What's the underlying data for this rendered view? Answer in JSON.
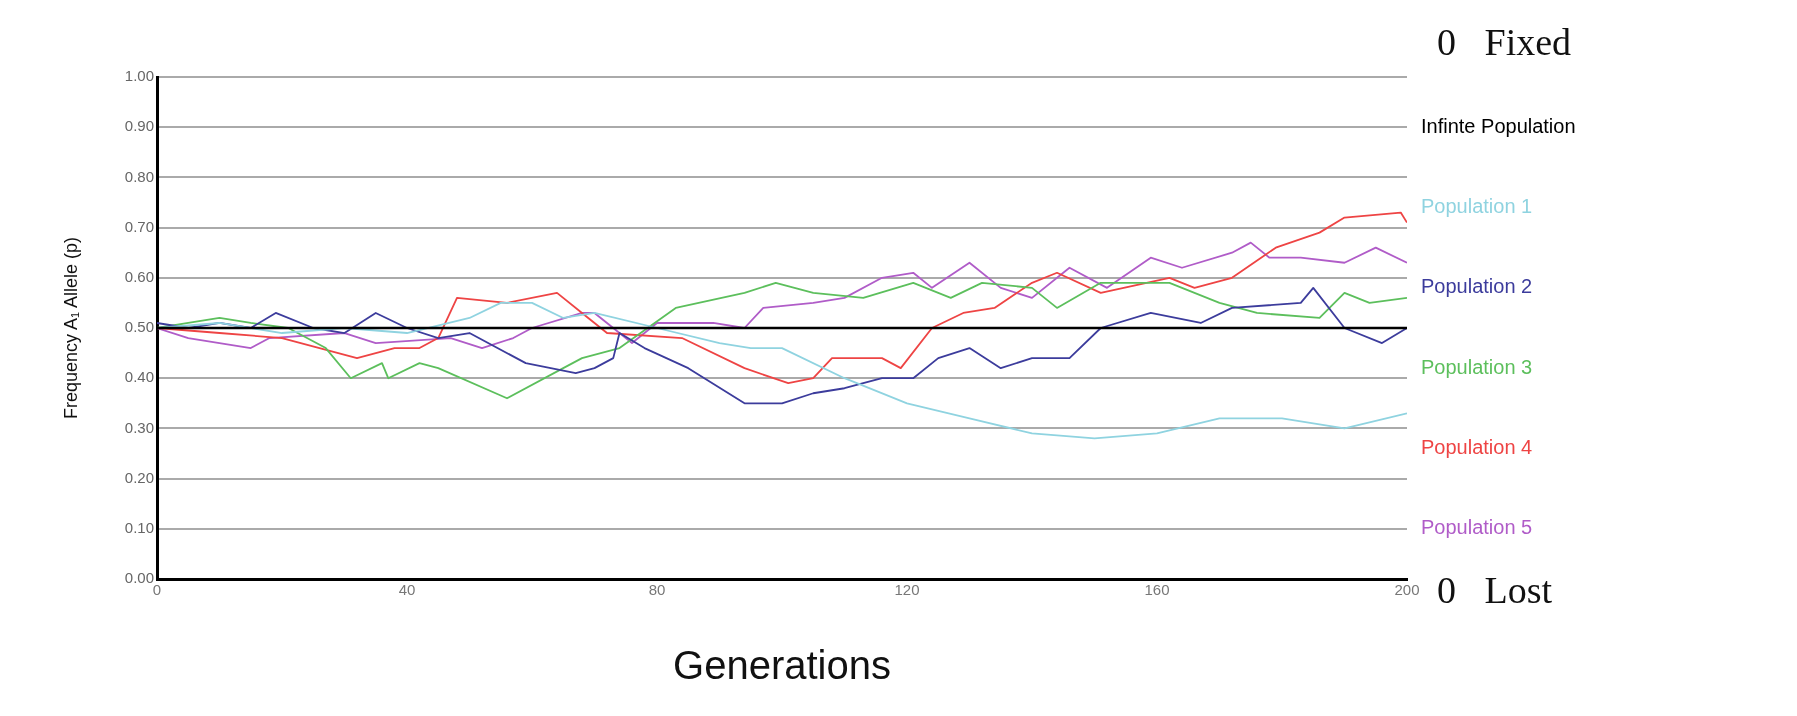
{
  "chart_data": {
    "type": "line",
    "xlabel": "Generations",
    "ylabel": "Frequency A₁ Allele (p)",
    "xlim": [
      0,
      200
    ],
    "xticks": [
      0,
      40,
      80,
      120,
      160,
      200
    ],
    "ylim": [
      0,
      1
    ],
    "yticks": [
      {
        "value": 0,
        "label": "0.00"
      },
      {
        "value": 0.1,
        "label": "0.10"
      },
      {
        "value": 0.2,
        "label": "0.20"
      },
      {
        "value": 0.3,
        "label": "0.30"
      },
      {
        "value": 0.4,
        "label": "0.40"
      },
      {
        "value": 0.5,
        "label": "0.50"
      },
      {
        "value": 0.6,
        "label": "0.60"
      },
      {
        "value": 0.7,
        "label": "0.70"
      },
      {
        "value": 0.8,
        "label": "0.80"
      },
      {
        "value": 0.9,
        "label": "0.90"
      },
      {
        "value": 1,
        "label": "1.00"
      }
    ],
    "grid": "y",
    "legend": "right",
    "marker": "none",
    "line_style": "solid",
    "annotations": [
      "0   Fixed",
      "0   Lost"
    ],
    "series": [
      {
        "name": "Infinte Population",
        "color": "#000000",
        "x": [
          0,
          200
        ],
        "values": [
          0.5,
          0.5
        ]
      },
      {
        "name": "Population 1",
        "color": "#8fd3e0",
        "x": [
          0,
          10,
          20,
          30,
          40,
          50,
          55,
          60,
          65,
          70,
          80,
          90,
          95,
          100,
          110,
          120,
          130,
          140,
          150,
          160,
          170,
          180,
          190,
          200
        ],
        "values": [
          0.5,
          0.51,
          0.49,
          0.5,
          0.49,
          0.52,
          0.55,
          0.55,
          0.52,
          0.53,
          0.5,
          0.47,
          0.46,
          0.46,
          0.4,
          0.35,
          0.32,
          0.29,
          0.28,
          0.29,
          0.32,
          0.32,
          0.3,
          0.33
        ]
      },
      {
        "name": "Population 2",
        "color": "#3c3c9c",
        "x": [
          0,
          5,
          10,
          15,
          19,
          25,
          30,
          35,
          40,
          45,
          50,
          59,
          67,
          70,
          73,
          74,
          78,
          85,
          94,
          100,
          105,
          110,
          116,
          121,
          125,
          130,
          135,
          140,
          146,
          151,
          159,
          167,
          172,
          183,
          185,
          190,
          196,
          200
        ],
        "values": [
          0.51,
          0.5,
          0.51,
          0.5,
          0.53,
          0.5,
          0.49,
          0.53,
          0.5,
          0.48,
          0.49,
          0.43,
          0.41,
          0.42,
          0.44,
          0.49,
          0.46,
          0.42,
          0.35,
          0.35,
          0.37,
          0.38,
          0.4,
          0.4,
          0.44,
          0.46,
          0.42,
          0.44,
          0.44,
          0.5,
          0.53,
          0.51,
          0.54,
          0.55,
          0.58,
          0.5,
          0.47,
          0.5
        ]
      },
      {
        "name": "Population 3",
        "color": "#5cbf5c",
        "x": [
          0,
          5,
          10,
          15,
          21,
          27,
          31,
          36,
          37,
          42,
          45,
          56,
          65,
          68,
          74,
          83,
          94,
          99,
          105,
          113,
          121,
          127,
          132,
          140,
          144,
          151,
          162,
          170,
          176,
          186,
          190,
          194,
          200
        ],
        "values": [
          0.5,
          0.51,
          0.52,
          0.51,
          0.5,
          0.46,
          0.4,
          0.43,
          0.4,
          0.43,
          0.42,
          0.36,
          0.42,
          0.44,
          0.46,
          0.54,
          0.57,
          0.59,
          0.57,
          0.56,
          0.59,
          0.56,
          0.59,
          0.58,
          0.54,
          0.59,
          0.59,
          0.55,
          0.53,
          0.52,
          0.57,
          0.55,
          0.56
        ]
      },
      {
        "name": "Population 4",
        "color": "#ee4444",
        "x": [
          0,
          10,
          20,
          26,
          32,
          38,
          42,
          45,
          48,
          56,
          64,
          68,
          72,
          84,
          94,
          101,
          105,
          108,
          113,
          116,
          119,
          124,
          129,
          134,
          140,
          144,
          151,
          162,
          166,
          172,
          179,
          186,
          190,
          199,
          200
        ],
        "values": [
          0.5,
          0.49,
          0.48,
          0.46,
          0.44,
          0.46,
          0.46,
          0.48,
          0.56,
          0.55,
          0.57,
          0.53,
          0.49,
          0.48,
          0.42,
          0.39,
          0.4,
          0.44,
          0.44,
          0.44,
          0.42,
          0.5,
          0.53,
          0.54,
          0.59,
          0.61,
          0.57,
          0.6,
          0.58,
          0.6,
          0.66,
          0.69,
          0.72,
          0.73,
          0.71
        ]
      },
      {
        "name": "Population 5",
        "color": "#b05cc8",
        "x": [
          0,
          5,
          15,
          18,
          30,
          35,
          47,
          52,
          57,
          60,
          68,
          70,
          76,
          80,
          89,
          94,
          97,
          105,
          110,
          116,
          121,
          124,
          130,
          135,
          140,
          146,
          152,
          159,
          164,
          172,
          175,
          178,
          183,
          190,
          195,
          200
        ],
        "values": [
          0.5,
          0.48,
          0.46,
          0.48,
          0.49,
          0.47,
          0.48,
          0.46,
          0.48,
          0.5,
          0.53,
          0.53,
          0.47,
          0.51,
          0.51,
          0.5,
          0.54,
          0.55,
          0.56,
          0.6,
          0.61,
          0.58,
          0.63,
          0.58,
          0.56,
          0.62,
          0.58,
          0.64,
          0.62,
          0.65,
          0.67,
          0.64,
          0.64,
          0.63,
          0.66,
          0.63
        ]
      }
    ]
  }
}
